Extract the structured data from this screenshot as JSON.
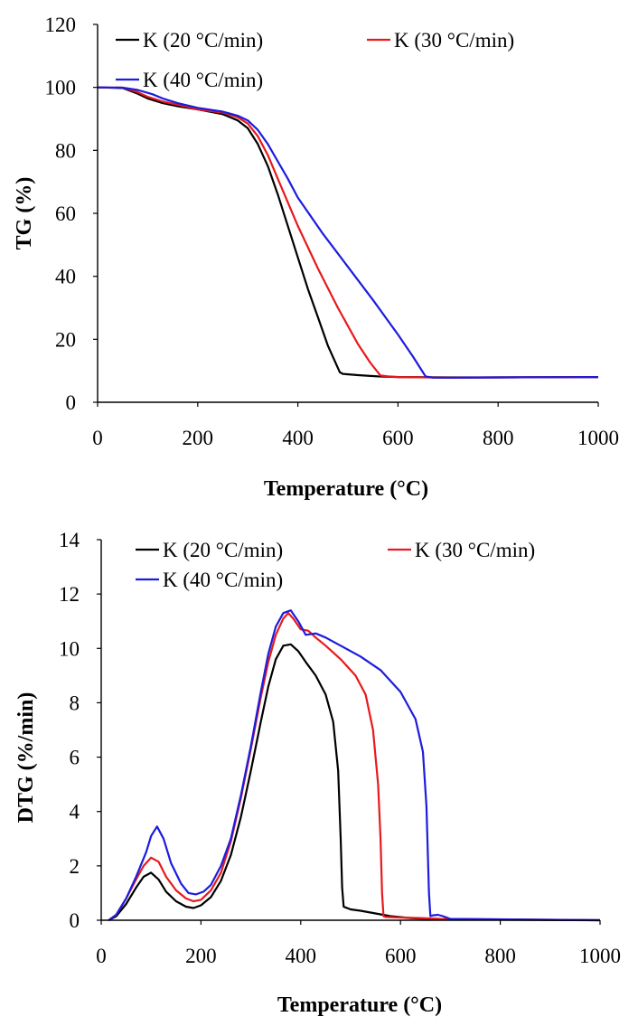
{
  "colors": {
    "black": "#000000",
    "red": "#e8191c",
    "blue": "#1c1cdd"
  },
  "chart_data": [
    {
      "type": "line",
      "xlabel": "Temperature (°C)",
      "ylabel": "TG (%)",
      "xlim": [
        0,
        1000
      ],
      "ylim": [
        0,
        120
      ],
      "xticks": [
        "0",
        "200",
        "400",
        "600",
        "800",
        "1000"
      ],
      "yticks": [
        "0",
        "20",
        "40",
        "60",
        "80",
        "100",
        "120"
      ],
      "legend": "top",
      "series": [
        {
          "name": "K (20 °C/min)",
          "color": "#000000",
          "x": [
            0,
            50,
            80,
            100,
            130,
            160,
            200,
            250,
            280,
            300,
            320,
            340,
            360,
            380,
            400,
            420,
            440,
            460,
            484,
            490,
            520,
            560,
            600,
            700,
            800,
            1000
          ],
          "y": [
            100,
            99.8,
            98,
            96.5,
            95,
            94,
            93,
            91.5,
            89.5,
            87,
            82,
            75,
            66,
            56,
            46,
            36,
            27,
            18,
            9.5,
            9.0,
            8.6,
            8.2,
            8.0,
            7.9,
            7.9,
            8.0
          ]
        },
        {
          "name": "K (30 °C/min)",
          "color": "#e8191c",
          "x": [
            0,
            50,
            80,
            100,
            130,
            160,
            200,
            250,
            280,
            300,
            320,
            340,
            360,
            380,
            400,
            440,
            480,
            520,
            545,
            565,
            580,
            600,
            700,
            800,
            1000
          ],
          "y": [
            100,
            99.9,
            98.5,
            97,
            95.5,
            94.5,
            93,
            92,
            90.5,
            88.5,
            84.5,
            78.5,
            71,
            63.5,
            56,
            42.5,
            30,
            18.5,
            12.5,
            8.5,
            8.2,
            8.0,
            7.8,
            7.9,
            8.0
          ]
        },
        {
          "name": "K (40 °C/min)",
          "color": "#1c1cdd",
          "x": [
            0,
            50,
            80,
            110,
            130,
            160,
            200,
            250,
            280,
            300,
            320,
            340,
            360,
            380,
            400,
            450,
            500,
            550,
            600,
            630,
            655,
            670,
            700,
            800,
            1000
          ],
          "y": [
            100,
            99.9,
            99.2,
            97.8,
            96.5,
            95,
            93.5,
            92.3,
            91,
            89.5,
            86.5,
            82,
            76.5,
            71,
            65,
            53.5,
            43,
            32.5,
            21.5,
            14.5,
            8.2,
            7.8,
            7.8,
            7.9,
            8.0
          ]
        }
      ]
    },
    {
      "type": "line",
      "xlabel": "Temperature (°C)",
      "ylabel": "DTG (%/min)",
      "xlim": [
        0,
        1000
      ],
      "ylim": [
        0,
        14
      ],
      "xticks": [
        "0",
        "200",
        "400",
        "600",
        "800",
        "1000"
      ],
      "yticks": [
        "0",
        "2",
        "4",
        "6",
        "8",
        "10",
        "12",
        "14"
      ],
      "legend": "top",
      "series": [
        {
          "name": "K (20 °C/min)",
          "color": "#000000",
          "x": [
            15,
            30,
            50,
            70,
            85,
            100,
            115,
            130,
            150,
            170,
            185,
            200,
            220,
            240,
            260,
            280,
            300,
            320,
            335,
            350,
            365,
            380,
            395,
            410,
            430,
            450,
            465,
            475,
            480,
            483,
            486,
            500,
            520,
            550,
            580,
            620,
            680,
            1000
          ],
          "y": [
            0,
            0.15,
            0.6,
            1.2,
            1.6,
            1.75,
            1.5,
            1.05,
            0.7,
            0.5,
            0.45,
            0.55,
            0.85,
            1.45,
            2.4,
            3.8,
            5.5,
            7.3,
            8.6,
            9.6,
            10.1,
            10.15,
            9.9,
            9.5,
            9.0,
            8.3,
            7.3,
            5.5,
            3.0,
            1.2,
            0.5,
            0.4,
            0.35,
            0.25,
            0.15,
            0.08,
            0.03,
            0
          ]
        },
        {
          "name": "K (30 °C/min)",
          "color": "#e8191c",
          "x": [
            15,
            30,
            50,
            70,
            85,
            100,
            115,
            130,
            150,
            170,
            185,
            200,
            220,
            240,
            260,
            280,
            300,
            320,
            335,
            350,
            365,
            375,
            385,
            400,
            415,
            430,
            450,
            480,
            510,
            530,
            545,
            555,
            560,
            563,
            566,
            570,
            600,
            640,
            680,
            1000
          ],
          "y": [
            0,
            0.2,
            0.8,
            1.5,
            2.0,
            2.3,
            2.15,
            1.6,
            1.1,
            0.8,
            0.7,
            0.75,
            1.1,
            1.75,
            2.9,
            4.5,
            6.3,
            8.2,
            9.5,
            10.5,
            11.1,
            11.3,
            11.1,
            10.7,
            10.65,
            10.4,
            10.1,
            9.6,
            9.0,
            8.3,
            7.0,
            5.0,
            3.0,
            1.0,
            0.15,
            0.12,
            0.1,
            0.08,
            0.05,
            0
          ]
        },
        {
          "name": "K (40 °C/min)",
          "color": "#1c1cdd",
          "x": [
            15,
            30,
            50,
            70,
            90,
            100,
            112,
            125,
            140,
            160,
            175,
            190,
            205,
            220,
            240,
            260,
            280,
            300,
            320,
            335,
            350,
            365,
            380,
            395,
            410,
            430,
            450,
            480,
            520,
            560,
            600,
            630,
            645,
            652,
            657,
            660,
            665,
            675,
            685,
            700,
            1000
          ],
          "y": [
            0,
            0.2,
            0.8,
            1.6,
            2.5,
            3.1,
            3.45,
            3.0,
            2.1,
            1.35,
            1.0,
            0.95,
            1.05,
            1.3,
            2.0,
            3.0,
            4.6,
            6.4,
            8.4,
            9.8,
            10.8,
            11.3,
            11.4,
            11.0,
            10.5,
            10.55,
            10.4,
            10.1,
            9.7,
            9.2,
            8.4,
            7.4,
            6.2,
            4.2,
            1.0,
            0.15,
            0.18,
            0.2,
            0.15,
            0.05,
            0
          ]
        }
      ]
    }
  ]
}
